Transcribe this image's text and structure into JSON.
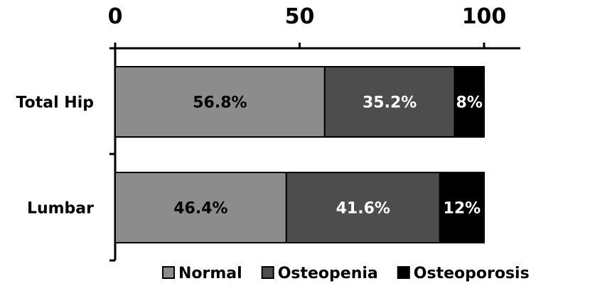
{
  "chart_data": {
    "type": "bar",
    "orientation": "horizontal",
    "stacked": true,
    "title": "",
    "xlabel": "",
    "ylabel": "",
    "xlim": [
      0,
      100
    ],
    "x_ticks": [
      0,
      50,
      100
    ],
    "x_axis_position": "top",
    "grid": false,
    "legend_position": "bottom-right",
    "categories": [
      "Total Hip",
      "Lumbar"
    ],
    "series": [
      {
        "name": "Normal",
        "color": "#8c8c8c",
        "label_color": "#000000",
        "values": [
          56.8,
          46.4
        ],
        "labels": [
          "56.8%",
          "46.4%"
        ]
      },
      {
        "name": "Osteopenia",
        "color": "#4d4d4d",
        "label_color": "#ffffff",
        "values": [
          35.2,
          41.6
        ],
        "labels": [
          "35.2%",
          "41.6%"
        ]
      },
      {
        "name": "Osteoporosis",
        "color": "#000000",
        "label_color": "#ffffff",
        "values": [
          8,
          12
        ],
        "labels": [
          "8%",
          "12%"
        ]
      }
    ]
  }
}
